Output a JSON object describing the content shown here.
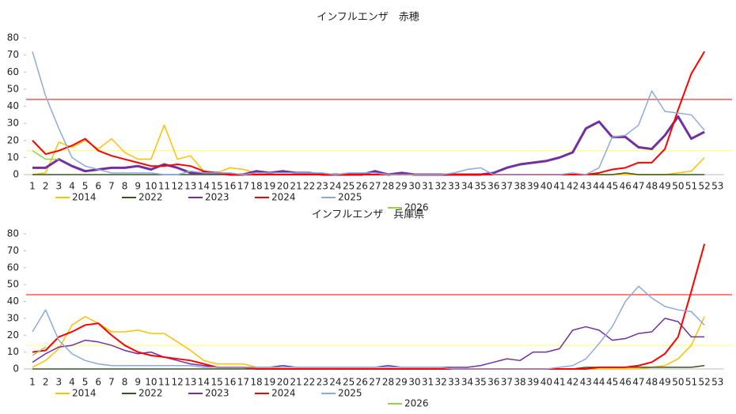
{
  "chart_data": [
    {
      "type": "line",
      "title": "インフルエンザ　赤穂",
      "categories": [
        "1",
        "2",
        "3",
        "4",
        "5",
        "6",
        "7",
        "8",
        "9",
        "10",
        "11",
        "12",
        "13",
        "14",
        "15",
        "16",
        "17",
        "18",
        "19",
        "20",
        "21",
        "22",
        "23",
        "24",
        "25",
        "26",
        "27",
        "28",
        "29",
        "30",
        "31",
        "32",
        "33",
        "34",
        "35",
        "36",
        "37",
        "38",
        "39",
        "40",
        "41",
        "42",
        "43",
        "44",
        "45",
        "46",
        "47",
        "48",
        "49",
        "50",
        "51",
        "52",
        "53"
      ],
      "ylim": [
        0,
        80
      ],
      "yticks": [
        0,
        10,
        20,
        30,
        40,
        50,
        60,
        70,
        80
      ],
      "hlines": [
        {
          "value": 44,
          "color": "#ff0000"
        },
        {
          "value": 14,
          "color": "#ffff66"
        }
      ],
      "series": [
        {
          "name": "2014",
          "color": "#ffc000",
          "values": [
            0,
            1,
            19,
            16,
            20,
            15,
            21,
            13,
            9,
            9,
            29,
            9,
            11,
            2,
            1,
            4,
            3,
            1,
            0,
            0,
            0,
            0,
            0,
            0,
            0,
            0,
            0,
            0,
            0,
            0,
            0,
            0,
            0,
            0,
            0,
            0,
            0,
            0,
            0,
            0,
            0,
            0,
            0,
            0,
            0,
            0,
            0,
            0,
            0,
            1,
            2,
            10,
            null
          ]
        },
        {
          "name": "2022",
          "color": "#375623",
          "values": [
            0,
            0,
            0,
            0,
            0,
            0,
            0,
            0,
            0,
            0,
            0,
            0,
            0,
            0,
            0,
            0,
            0,
            0,
            0,
            0,
            0,
            0,
            0,
            0,
            0,
            0,
            0,
            0,
            0,
            0,
            0,
            0,
            0,
            0,
            0,
            0,
            0,
            0,
            0,
            0,
            0,
            0,
            0,
            0,
            0,
            1,
            0,
            0,
            0,
            0,
            0,
            0,
            null
          ]
        },
        {
          "name": "2023",
          "color": "#7030a0",
          "values": [
            4,
            4,
            9,
            5,
            2,
            3,
            4,
            4,
            5,
            3,
            6,
            4,
            1,
            1,
            1,
            0,
            0,
            2,
            1,
            2,
            1,
            1,
            0,
            0,
            0,
            0,
            2,
            0,
            1,
            0,
            0,
            0,
            0,
            0,
            0,
            1,
            4,
            6,
            7,
            8,
            10,
            13,
            27,
            31,
            22,
            22,
            16,
            15,
            23,
            34,
            21,
            25,
            null
          ]
        },
        {
          "name": "2024",
          "color": "#ff0000",
          "values": [
            20,
            12,
            14,
            17,
            21,
            14,
            11,
            9,
            7,
            5,
            5,
            6,
            5,
            2,
            1,
            0,
            0,
            0,
            0,
            0,
            0,
            0,
            0,
            0,
            0,
            0,
            0,
            0,
            0,
            0,
            0,
            0,
            0,
            0,
            0,
            0,
            0,
            0,
            0,
            0,
            0,
            0,
            0,
            1,
            3,
            4,
            7,
            7,
            15,
            38,
            59,
            72,
            null
          ]
        },
        {
          "name": "2025",
          "color": "#8ea9db",
          "values": [
            72,
            46,
            27,
            10,
            5,
            3,
            1,
            1,
            1,
            1,
            0,
            0,
            2,
            1,
            1,
            1,
            0,
            1,
            1,
            1,
            1,
            1,
            1,
            0,
            1,
            1,
            1,
            0,
            0,
            0,
            0,
            0,
            1,
            3,
            4,
            0,
            0,
            0,
            0,
            0,
            0,
            1,
            0,
            4,
            22,
            23,
            29,
            49,
            37,
            36,
            35,
            26,
            null
          ]
        },
        {
          "name": "2026",
          "color": "#92d050",
          "values": [
            14,
            9,
            9,
            null,
            null,
            null,
            null,
            null,
            null,
            null,
            null,
            null,
            null,
            null,
            null,
            null,
            null,
            null,
            null,
            null,
            null,
            null,
            null,
            null,
            null,
            null,
            null,
            null,
            null,
            null,
            null,
            null,
            null,
            null,
            null,
            null,
            null,
            null,
            null,
            null,
            null,
            null,
            null,
            null,
            null,
            null,
            null,
            null,
            null,
            null,
            null,
            null,
            null
          ]
        }
      ]
    },
    {
      "type": "line",
      "title": "インフルエンザ　兵庫県",
      "categories": [
        "1",
        "2",
        "3",
        "4",
        "5",
        "6",
        "7",
        "8",
        "9",
        "10",
        "11",
        "12",
        "13",
        "14",
        "15",
        "16",
        "17",
        "18",
        "19",
        "20",
        "21",
        "22",
        "23",
        "24",
        "25",
        "26",
        "27",
        "28",
        "29",
        "30",
        "31",
        "32",
        "33",
        "34",
        "35",
        "36",
        "37",
        "38",
        "39",
        "40",
        "41",
        "42",
        "43",
        "44",
        "45",
        "46",
        "47",
        "48",
        "49",
        "50",
        "51",
        "52",
        "53"
      ],
      "ylim": [
        0,
        80
      ],
      "yticks": [
        0,
        10,
        20,
        30,
        40,
        50,
        60,
        70,
        80
      ],
      "hlines": [
        {
          "value": 44,
          "color": "#ff0000"
        },
        {
          "value": 14,
          "color": "#ffff66"
        }
      ],
      "series": [
        {
          "name": "2014",
          "color": "#ffc000",
          "values": [
            1,
            5,
            12,
            26,
            31,
            27,
            22,
            22,
            23,
            21,
            21,
            16,
            11,
            5,
            3,
            3,
            3,
            1,
            1,
            0,
            0,
            0,
            0,
            0,
            0,
            0,
            0,
            0,
            0,
            0,
            0,
            0,
            0,
            0,
            0,
            0,
            0,
            0,
            0,
            0,
            0,
            0,
            0,
            0,
            0,
            0,
            0,
            1,
            2,
            6,
            14,
            31,
            null
          ]
        },
        {
          "name": "2022",
          "color": "#375623",
          "values": [
            0,
            0,
            0,
            0,
            0,
            0,
            0,
            0,
            0,
            0,
            0,
            0,
            0,
            0,
            0,
            0,
            0,
            0,
            0,
            0,
            0,
            0,
            0,
            0,
            0,
            0,
            0,
            0,
            0,
            0,
            0,
            0,
            0,
            0,
            0,
            0,
            0,
            0,
            0,
            0,
            0,
            0,
            1,
            1,
            1,
            1,
            1,
            1,
            1,
            1,
            1,
            2,
            null
          ]
        },
        {
          "name": "2023",
          "color": "#7030a0",
          "values": [
            4,
            9,
            13,
            14,
            17,
            16,
            14,
            11,
            9,
            10,
            7,
            5,
            3,
            2,
            1,
            1,
            1,
            1,
            1,
            2,
            1,
            1,
            1,
            1,
            1,
            1,
            1,
            2,
            1,
            1,
            1,
            1,
            1,
            1,
            2,
            4,
            6,
            5,
            10,
            10,
            12,
            23,
            25,
            23,
            17,
            18,
            21,
            22,
            30,
            28,
            19,
            19,
            null
          ]
        },
        {
          "name": "2024",
          "color": "#ff0000",
          "values": [
            10,
            11,
            19,
            22,
            26,
            27,
            20,
            14,
            10,
            8,
            7,
            6,
            5,
            3,
            1,
            1,
            1,
            0,
            0,
            0,
            0,
            0,
            0,
            0,
            0,
            0,
            0,
            0,
            0,
            0,
            0,
            0,
            0,
            0,
            0,
            0,
            0,
            0,
            0,
            0,
            0,
            0,
            0,
            1,
            1,
            1,
            2,
            4,
            9,
            19,
            46,
            74,
            null
          ]
        },
        {
          "name": "2025",
          "color": "#8ea9db",
          "values": [
            22,
            35,
            17,
            9,
            5,
            3,
            2,
            2,
            2,
            2,
            2,
            2,
            2,
            1,
            1,
            1,
            1,
            1,
            1,
            1,
            1,
            1,
            1,
            1,
            1,
            1,
            1,
            1,
            1,
            1,
            1,
            1,
            0,
            0,
            0,
            0,
            0,
            0,
            0,
            0,
            1,
            2,
            6,
            15,
            25,
            40,
            49,
            42,
            37,
            35,
            34,
            26,
            null
          ]
        },
        {
          "name": "2026",
          "color": "#92d050",
          "values": [
            8,
            13,
            null,
            null,
            null,
            null,
            null,
            null,
            null,
            null,
            null,
            null,
            null,
            null,
            null,
            null,
            null,
            null,
            null,
            null,
            null,
            null,
            null,
            null,
            null,
            null,
            null,
            null,
            null,
            null,
            null,
            null,
            null,
            null,
            null,
            null,
            null,
            null,
            null,
            null,
            null,
            null,
            null,
            null,
            null,
            null,
            null,
            null,
            null,
            null,
            null,
            null,
            null
          ]
        }
      ]
    }
  ]
}
